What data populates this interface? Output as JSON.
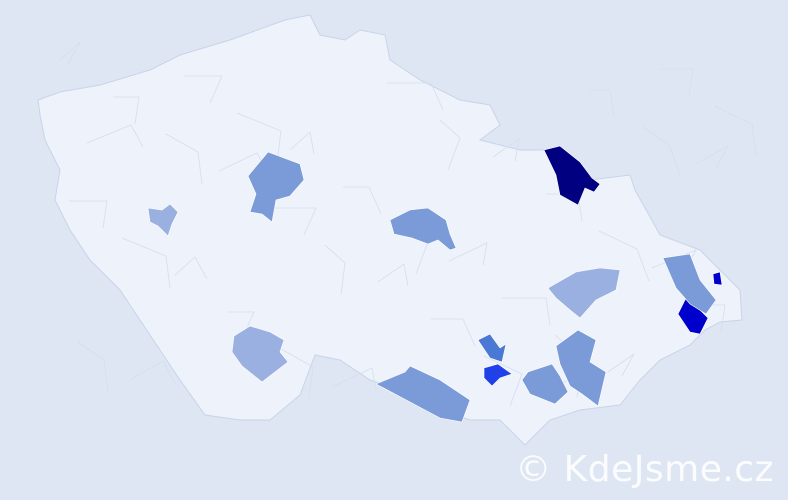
{
  "watermark": "© KdeJsme.cz",
  "colors": {
    "background": "#dde6f2",
    "land": "#eef2fa",
    "border": "#c8d4ea",
    "level_1": "#9ab0e0",
    "level_2": "#7a9ad8",
    "level_3": "#4a78d4",
    "level_4": "#2040e8",
    "level_5": "#0000cc",
    "level_6": "#000080"
  },
  "regions": [
    {
      "name": "north-east-district",
      "level": "level_6"
    },
    {
      "name": "east-district-small",
      "level": "level_5"
    },
    {
      "name": "east-district-south",
      "level": "level_5"
    },
    {
      "name": "south-moravia-district-1",
      "level": "level_4"
    },
    {
      "name": "south-moravia-district-2",
      "level": "level_3"
    },
    {
      "name": "south-moravia-district-3",
      "level": "level_2"
    },
    {
      "name": "south-moravia-district-4",
      "level": "level_2"
    },
    {
      "name": "south-district-long",
      "level": "level_2"
    },
    {
      "name": "central-district",
      "level": "level_2"
    },
    {
      "name": "west-central-district",
      "level": "level_2"
    },
    {
      "name": "east-district-mid",
      "level": "level_2"
    },
    {
      "name": "moravia-mid-district",
      "level": "level_1"
    },
    {
      "name": "south-bohemia-district",
      "level": "level_1"
    },
    {
      "name": "west-district-small",
      "level": "level_1"
    }
  ]
}
